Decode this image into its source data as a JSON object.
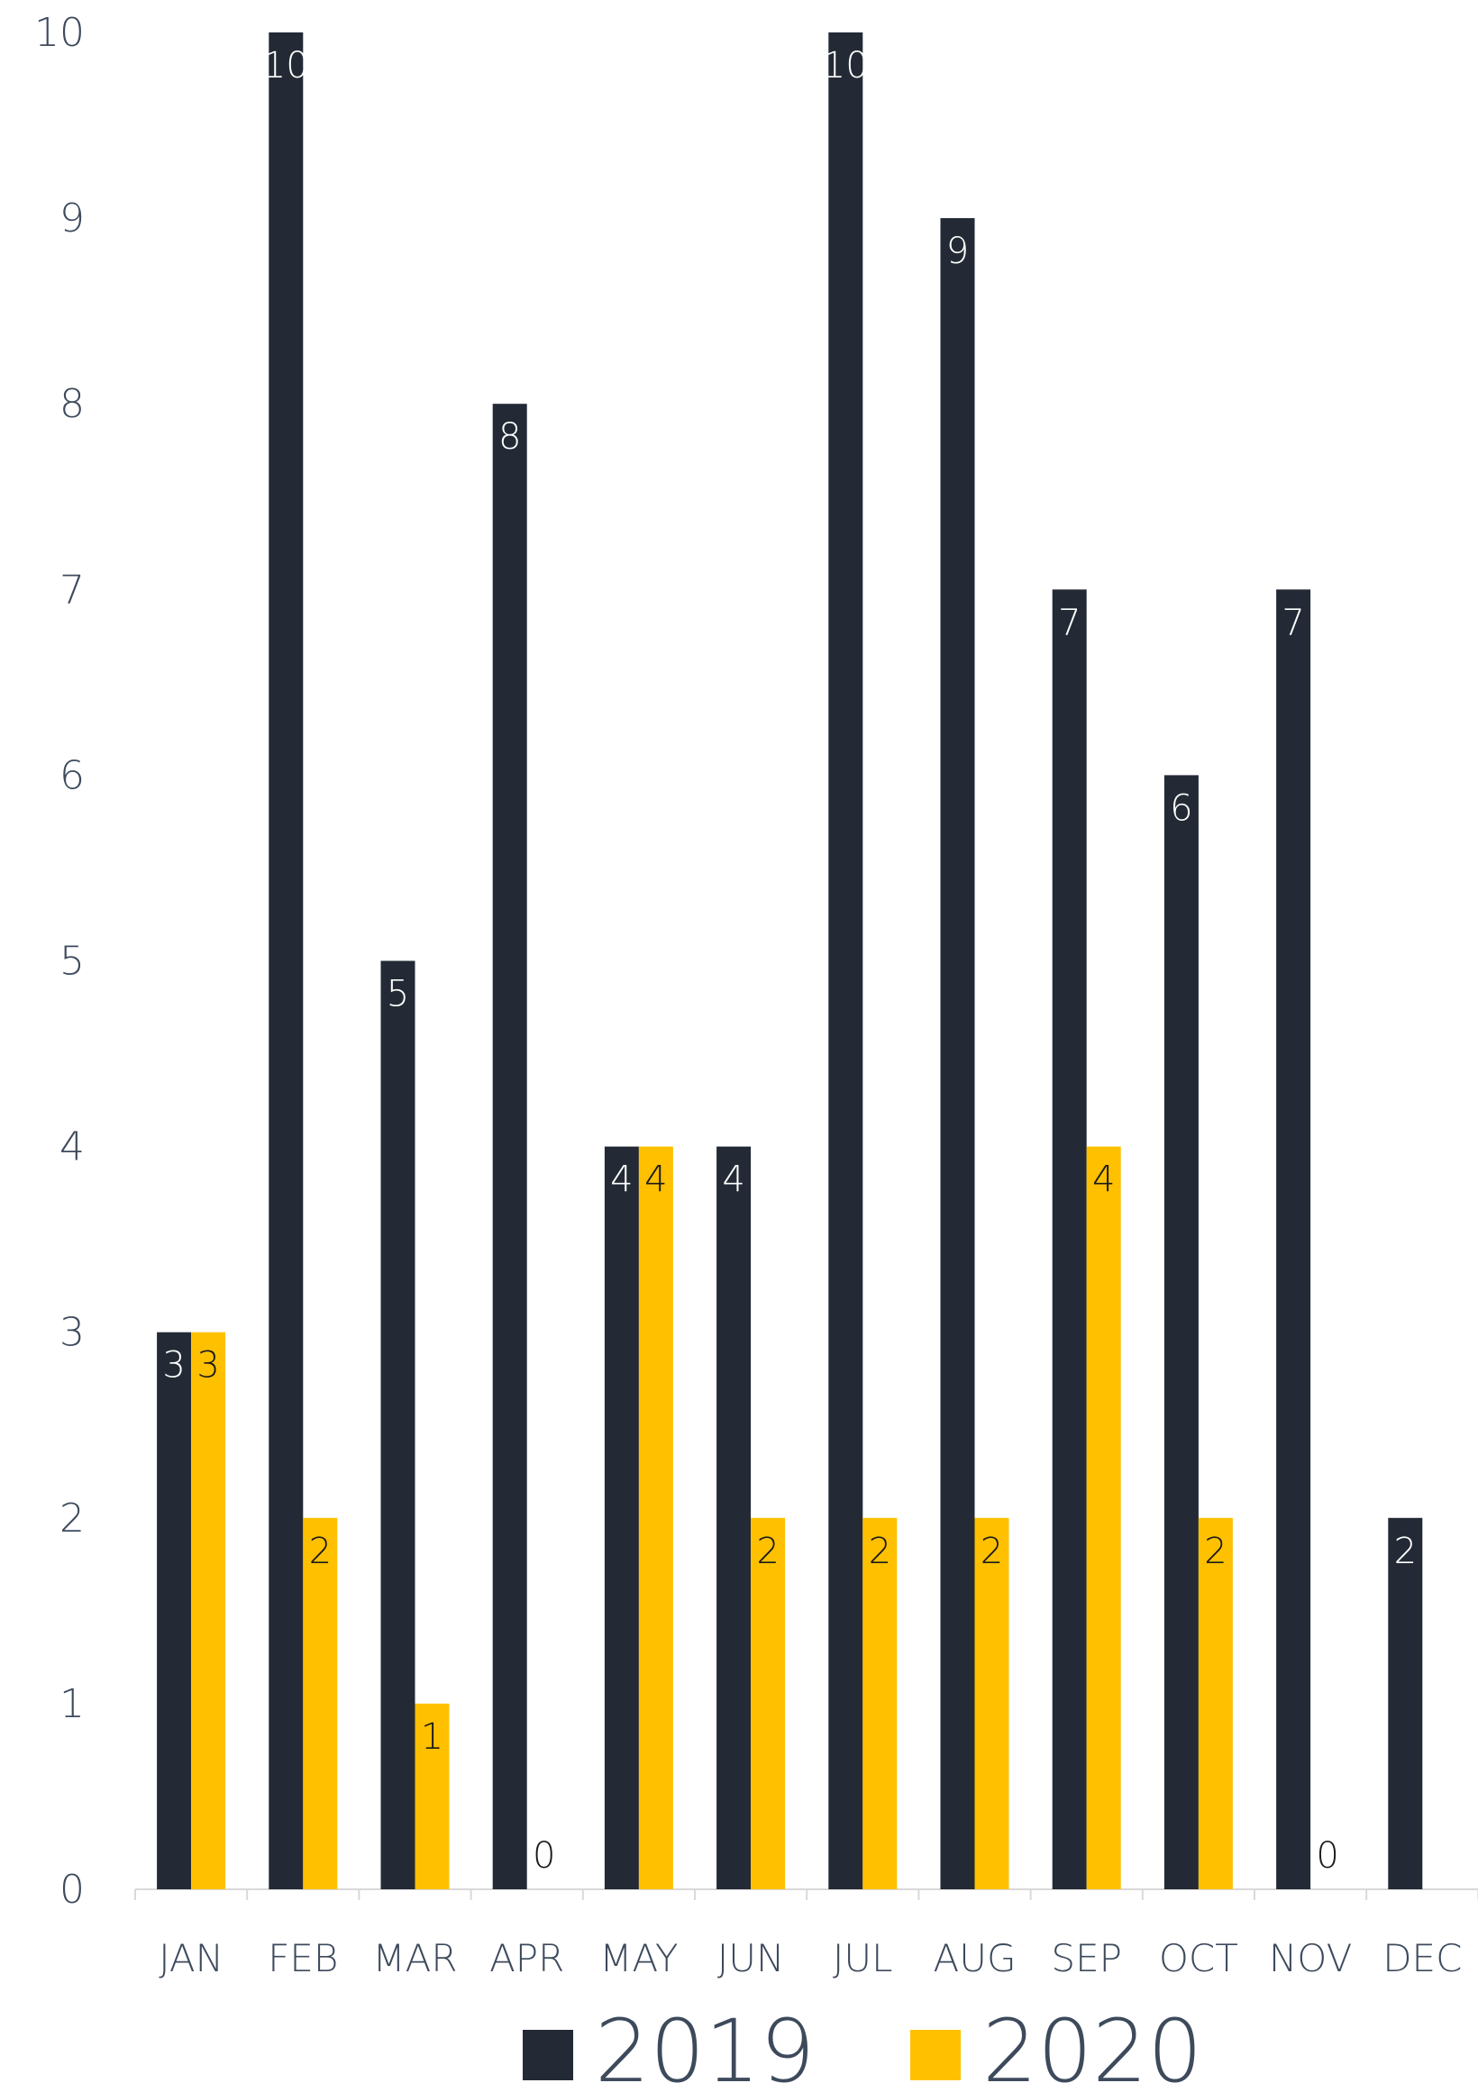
{
  "chart_data": {
    "type": "bar",
    "title": "",
    "xlabel": "",
    "ylabel": "",
    "categories": [
      "JAN",
      "FEB",
      "MAR",
      "APR",
      "MAY",
      "JUN",
      "JUL",
      "AUG",
      "SEP",
      "OCT",
      "NOV",
      "DEC"
    ],
    "series": [
      {
        "name": "2019",
        "color": "#232a35",
        "label_color": "#ffffff",
        "values": [
          3,
          10,
          5,
          8,
          4,
          4,
          10,
          9,
          7,
          6,
          7,
          2
        ]
      },
      {
        "name": "2020",
        "color": "#ffc000",
        "label_color": "#1a1a1a",
        "values": [
          3,
          2,
          1,
          0,
          4,
          2,
          2,
          2,
          4,
          2,
          0,
          null
        ]
      }
    ],
    "ylim": [
      0,
      10
    ],
    "yticks": [
      0,
      1,
      2,
      3,
      4,
      5,
      6,
      7,
      8,
      9,
      10
    ],
    "grid": false,
    "legend_position": "bottom",
    "axis_text_color": "#3d4a5c",
    "baseline_color": "#d9d9d9"
  }
}
